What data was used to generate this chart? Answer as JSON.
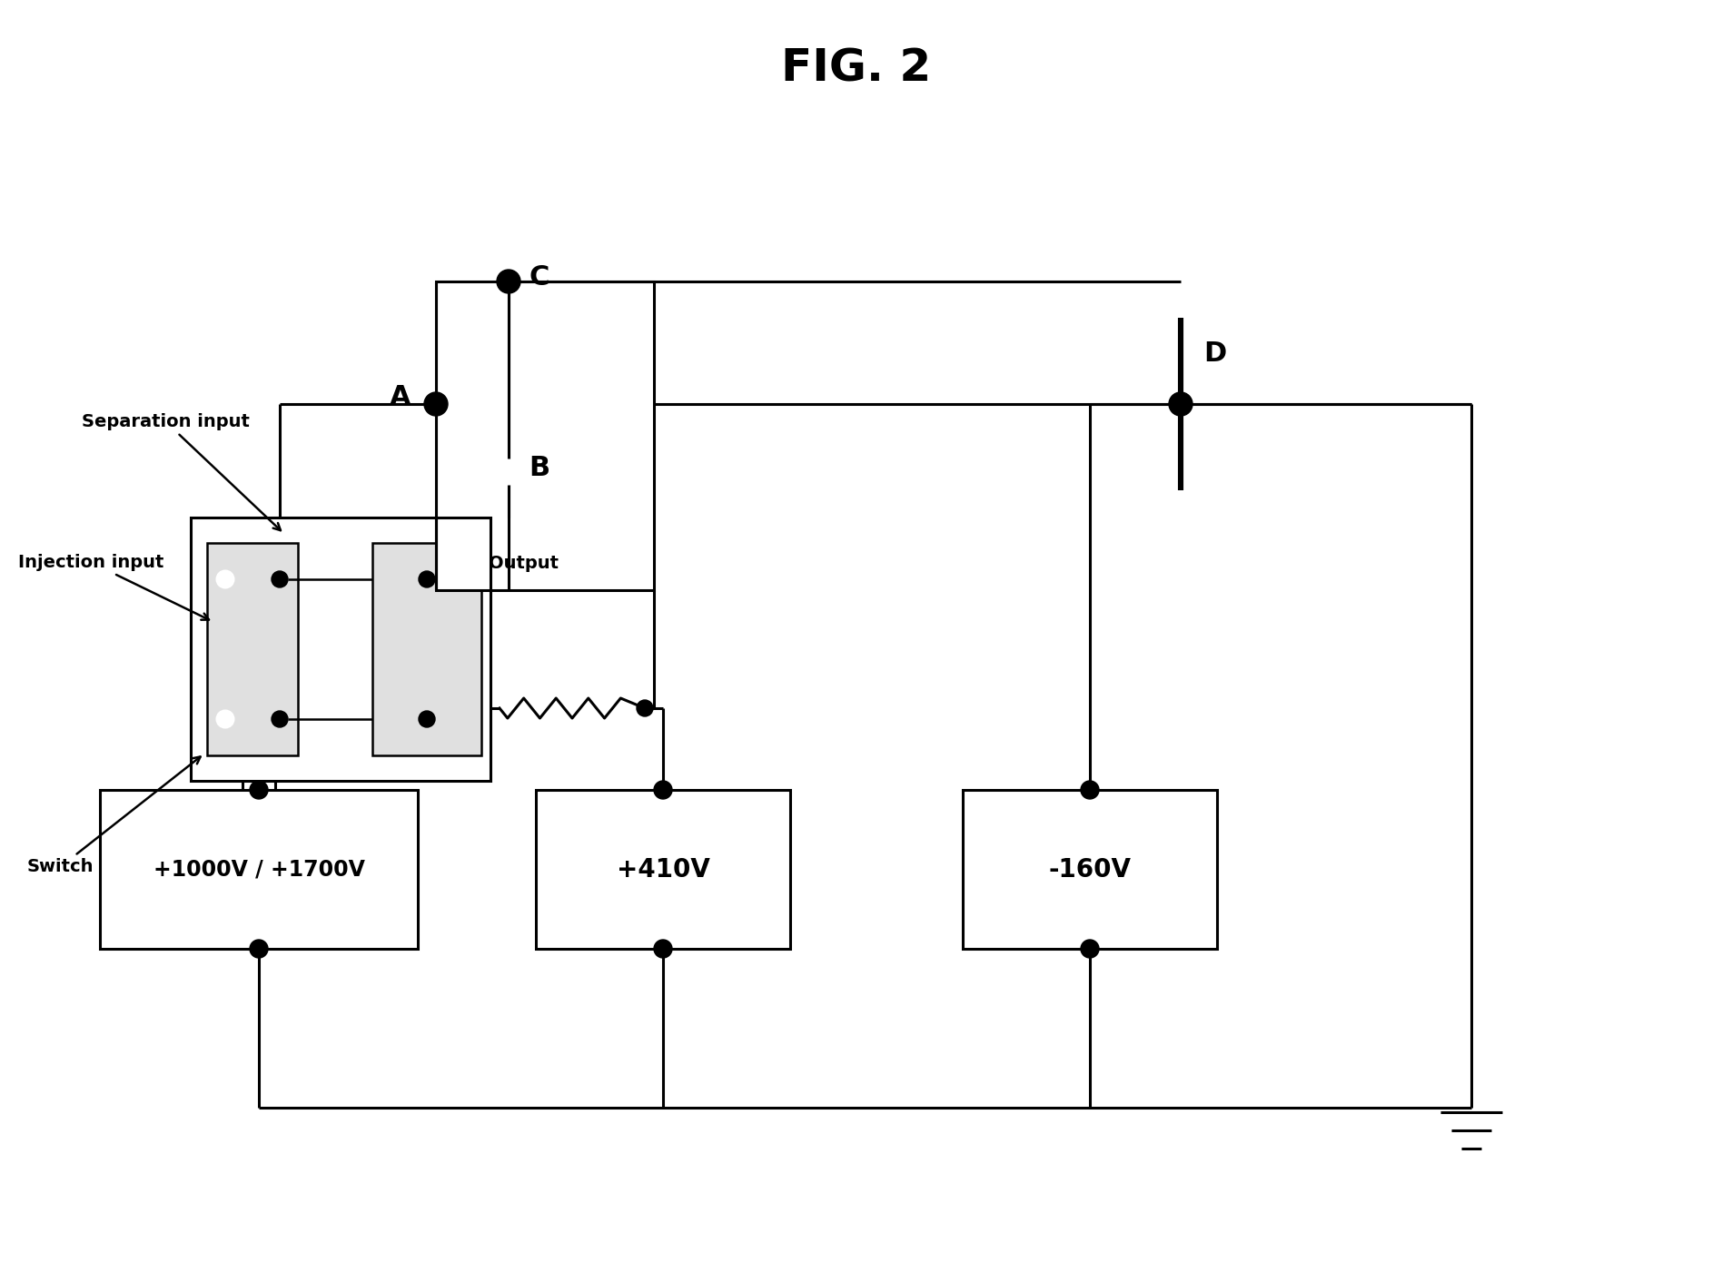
{
  "title": "FIG. 2",
  "title_fontsize": 36,
  "title_fontweight": "bold",
  "bg_color": "#ffffff",
  "line_color": "#000000",
  "line_width": 2.2,
  "chip_label_sep_input": "Separation input",
  "chip_label_inj_input": "Injection input",
  "chip_label_output": "Output",
  "chip_label_switch": "Switch",
  "box1_label": "+1000V / +1700V",
  "box2_label": "+410V",
  "box3_label": "-160V"
}
